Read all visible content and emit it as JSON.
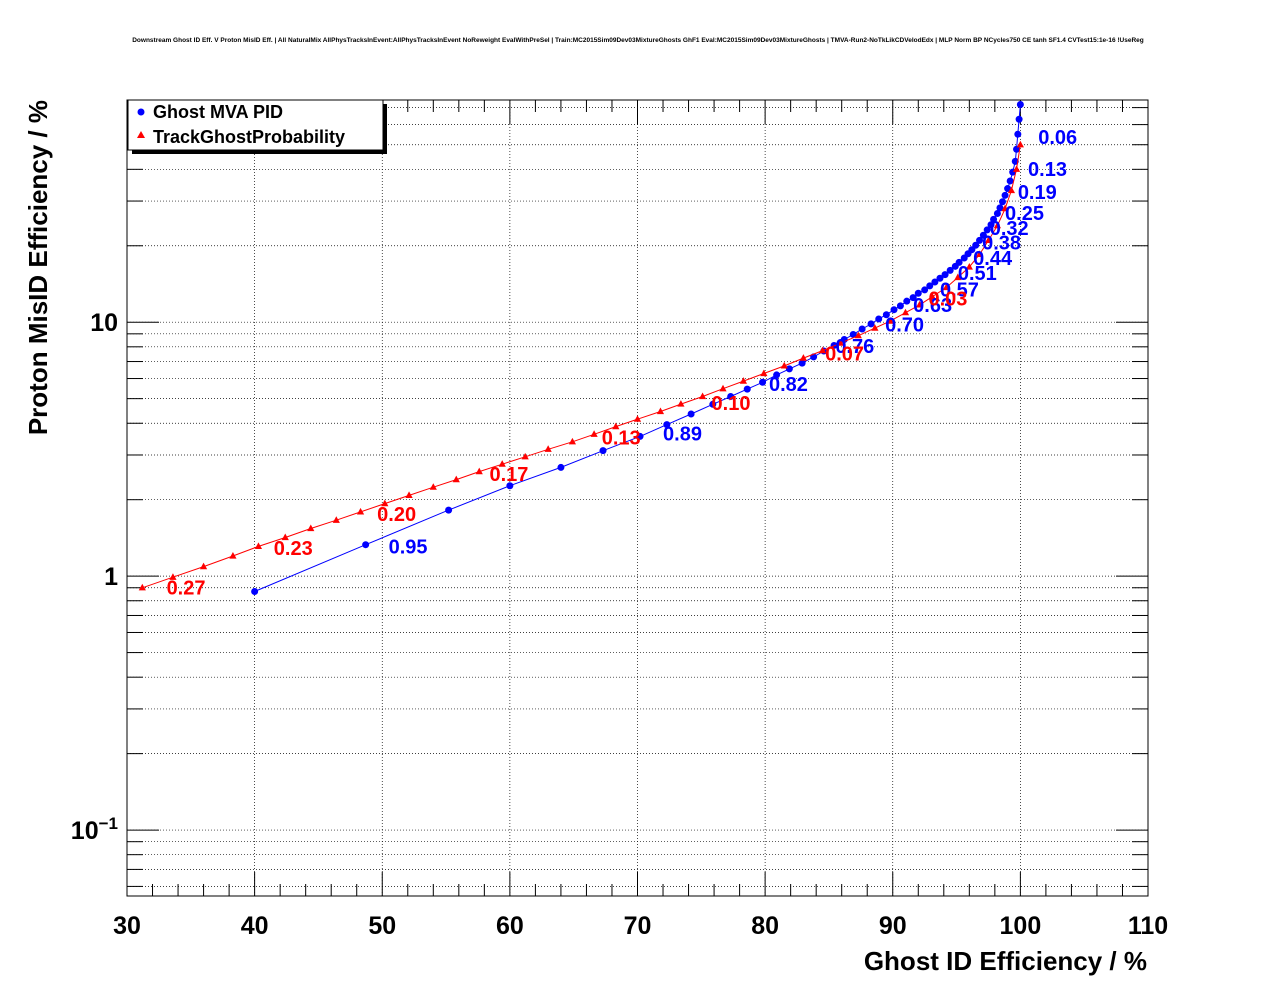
{
  "chart_data": {
    "type": "scatter",
    "title": "Downstream Ghost ID Eff. V Proton MisID Eff. | All NaturalMix AllPhysTracksInEvent:AllPhysTracksInEvent NoReweight EvalWithPreSel | Train:MC2015Sim09Dev03MixtureGhosts GhF1 Eval:MC2015Sim09Dev03MixtureGhosts | TMVA-Run2-NoTkLikCDVelodEdx | MLP Norm BP NCycles750 CE tanh SF1.4 CVTest15:1e-16 !UseReg",
    "xlabel": "Ghost ID Efficiency / %",
    "ylabel": "Proton MisID Efficiency / %",
    "xlim": [
      30,
      110
    ],
    "ylim": [
      0.055,
      75
    ],
    "y_scale": "log",
    "grid": true,
    "legend_position": "top-left",
    "x_tick_labels": [
      "30",
      "40",
      "50",
      "60",
      "70",
      "80",
      "90",
      "100",
      "110"
    ],
    "y_tick_labels": [
      {
        "value": 0.1,
        "base": "10",
        "exp": "−1"
      },
      {
        "value": 1,
        "base": "1",
        "exp": ""
      },
      {
        "value": 10,
        "base": "10",
        "exp": ""
      }
    ],
    "series": [
      {
        "name": "Ghost MVA PID",
        "color": "#0000ff",
        "marker": "circle",
        "points": [
          [
            40.0,
            0.87
          ],
          [
            48.7,
            1.33
          ],
          [
            55.2,
            1.82
          ],
          [
            60.0,
            2.27
          ],
          [
            64.0,
            2.68
          ],
          [
            67.3,
            3.12
          ],
          [
            70.2,
            3.55
          ],
          [
            72.3,
            3.95
          ],
          [
            74.2,
            4.35
          ],
          [
            75.9,
            4.75
          ],
          [
            77.3,
            5.1
          ],
          [
            78.6,
            5.45
          ],
          [
            79.8,
            5.8
          ],
          [
            80.9,
            6.2
          ],
          [
            81.9,
            6.55
          ],
          [
            82.9,
            6.9
          ],
          [
            83.8,
            7.3
          ],
          [
            84.6,
            7.7
          ],
          [
            85.4,
            8.1
          ],
          [
            86.2,
            8.55
          ],
          [
            86.9,
            8.95
          ],
          [
            87.6,
            9.4
          ],
          [
            88.3,
            9.85
          ],
          [
            88.9,
            10.3
          ],
          [
            89.5,
            10.7
          ],
          [
            90.1,
            11.2
          ],
          [
            90.6,
            11.6
          ],
          [
            91.1,
            12.1
          ],
          [
            91.6,
            12.5
          ],
          [
            92.0,
            13.0
          ],
          [
            92.5,
            13.4
          ],
          [
            92.9,
            13.9
          ],
          [
            93.3,
            14.4
          ],
          [
            93.7,
            14.9
          ],
          [
            94.1,
            15.4
          ],
          [
            94.5,
            16.0
          ],
          [
            94.9,
            16.6
          ],
          [
            95.2,
            17.2
          ],
          [
            95.6,
            17.9
          ],
          [
            95.9,
            18.6
          ],
          [
            96.2,
            19.3
          ],
          [
            96.5,
            20.1
          ],
          [
            96.8,
            21.0
          ],
          [
            97.1,
            22.0
          ],
          [
            97.4,
            23.1
          ],
          [
            97.7,
            24.2
          ],
          [
            97.9,
            25.4
          ],
          [
            98.2,
            26.8
          ],
          [
            98.4,
            28.2
          ],
          [
            98.6,
            29.8
          ],
          [
            98.8,
            31.6
          ],
          [
            99.0,
            33.6
          ],
          [
            99.2,
            36.0
          ],
          [
            99.4,
            39.0
          ],
          [
            99.6,
            43.0
          ],
          [
            99.7,
            48.0
          ],
          [
            99.8,
            55.0
          ],
          [
            99.9,
            63.0
          ],
          [
            100.0,
            72.0
          ]
        ]
      },
      {
        "name": "TrackGhostProbability",
        "color": "#ff0000",
        "marker": "triangle",
        "points": [
          [
            31.2,
            0.9
          ],
          [
            33.6,
            0.99
          ],
          [
            36.0,
            1.09
          ],
          [
            38.3,
            1.2
          ],
          [
            40.3,
            1.31
          ],
          [
            42.4,
            1.42
          ],
          [
            44.4,
            1.54
          ],
          [
            46.4,
            1.66
          ],
          [
            48.3,
            1.79
          ],
          [
            50.2,
            1.93
          ],
          [
            52.1,
            2.08
          ],
          [
            54.0,
            2.24
          ],
          [
            55.8,
            2.4
          ],
          [
            57.6,
            2.58
          ],
          [
            59.4,
            2.76
          ],
          [
            61.2,
            2.95
          ],
          [
            63.0,
            3.16
          ],
          [
            64.9,
            3.38
          ],
          [
            66.6,
            3.62
          ],
          [
            68.3,
            3.88
          ],
          [
            70.0,
            4.15
          ],
          [
            71.8,
            4.45
          ],
          [
            73.4,
            4.76
          ],
          [
            75.1,
            5.1
          ],
          [
            76.7,
            5.47
          ],
          [
            78.3,
            5.86
          ],
          [
            79.9,
            6.28
          ],
          [
            81.5,
            6.73
          ],
          [
            83.0,
            7.22
          ],
          [
            84.5,
            7.73
          ],
          [
            85.9,
            8.27
          ],
          [
            87.3,
            8.85
          ],
          [
            88.6,
            9.48
          ],
          [
            89.8,
            10.1
          ],
          [
            91.0,
            10.9
          ],
          [
            92.1,
            11.7
          ],
          [
            93.1,
            12.6
          ],
          [
            94.2,
            13.7
          ],
          [
            95.1,
            15.0
          ],
          [
            96.0,
            16.5
          ],
          [
            96.8,
            18.5
          ],
          [
            97.5,
            21.0
          ],
          [
            98.2,
            24.0
          ],
          [
            98.8,
            28.0
          ],
          [
            99.3,
            33.0
          ],
          [
            99.7,
            40.0
          ],
          [
            100.0,
            50.0
          ]
        ]
      }
    ],
    "annotations": [
      {
        "series": "Ghost MVA PID",
        "text": "0.95",
        "x": 50.5,
        "y": 1.32
      },
      {
        "series": "Ghost MVA PID",
        "text": "0.89",
        "x": 72.0,
        "y": 3.68
      },
      {
        "series": "Ghost MVA PID",
        "text": "0.82",
        "x": 80.3,
        "y": 5.75
      },
      {
        "series": "Ghost MVA PID",
        "text": "0.76",
        "x": 85.5,
        "y": 8.15
      },
      {
        "series": "Ghost MVA PID",
        "text": "0.70",
        "x": 89.4,
        "y": 9.9
      },
      {
        "series": "Ghost MVA PID",
        "text": "0.63",
        "x": 91.6,
        "y": 11.8
      },
      {
        "series": "Ghost MVA PID",
        "text": "0.57",
        "x": 93.7,
        "y": 13.6
      },
      {
        "series": "Ghost MVA PID",
        "text": "0.51",
        "x": 95.1,
        "y": 15.8
      },
      {
        "series": "Ghost MVA PID",
        "text": "0.44",
        "x": 96.3,
        "y": 18.1
      },
      {
        "series": "Ghost MVA PID",
        "text": "0.38",
        "x": 97.0,
        "y": 20.8
      },
      {
        "series": "Ghost MVA PID",
        "text": "0.32",
        "x": 97.6,
        "y": 23.7
      },
      {
        "series": "Ghost MVA PID",
        "text": "0.25",
        "x": 98.8,
        "y": 27.2
      },
      {
        "series": "Ghost MVA PID",
        "text": "0.19",
        "x": 99.8,
        "y": 32.8
      },
      {
        "series": "Ghost MVA PID",
        "text": "0.13",
        "x": 100.6,
        "y": 40.5
      },
      {
        "series": "Ghost MVA PID",
        "text": "0.06",
        "x": 101.4,
        "y": 54.0
      },
      {
        "series": "TrackGhostProbability",
        "text": "0.27",
        "x": 33.1,
        "y": 0.91
      },
      {
        "series": "TrackGhostProbability",
        "text": "0.23",
        "x": 41.5,
        "y": 1.3
      },
      {
        "series": "TrackGhostProbability",
        "text": "0.20",
        "x": 49.6,
        "y": 1.77
      },
      {
        "series": "TrackGhostProbability",
        "text": "0.17",
        "x": 58.4,
        "y": 2.55
      },
      {
        "series": "TrackGhostProbability",
        "text": "0.13",
        "x": 67.2,
        "y": 3.55
      },
      {
        "series": "TrackGhostProbability",
        "text": "0.10",
        "x": 75.8,
        "y": 4.85
      },
      {
        "series": "TrackGhostProbability",
        "text": "0.07",
        "x": 84.7,
        "y": 7.6
      },
      {
        "series": "TrackGhostProbability",
        "text": "0.03",
        "x": 92.8,
        "y": 12.5
      }
    ]
  }
}
